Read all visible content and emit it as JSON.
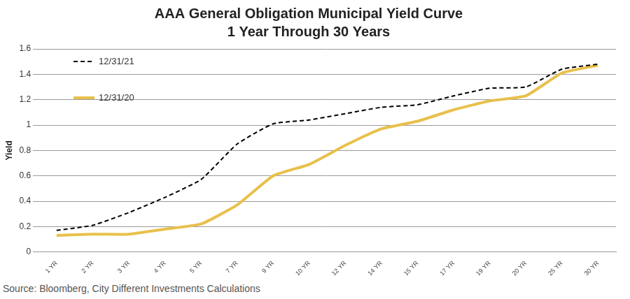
{
  "chart_data": {
    "type": "line",
    "title": "AAA General Obligation Municipal Yield Curve",
    "subtitle": "1 Year Through 30 Years",
    "y_label": "Yield",
    "source": "Source: Bloomberg, City Different Investments Calculations",
    "categories": [
      "1 YR",
      "2 YR",
      "3 YR",
      "4 YR",
      "5 YR",
      "7 YR",
      "9 YR",
      "10 YR",
      "12 YR",
      "14 YR",
      "15 YR",
      "17 YR",
      "19 YR",
      "20 YR",
      "25 YR",
      "30 YR"
    ],
    "series": [
      {
        "name": "12/31/21",
        "color": "#000000",
        "line_style": "dashed",
        "values": [
          0.17,
          0.21,
          0.31,
          0.43,
          0.57,
          0.85,
          1.01,
          1.04,
          1.09,
          1.14,
          1.16,
          1.23,
          1.29,
          1.3,
          1.44,
          1.48
        ]
      },
      {
        "name": "12/31/20",
        "color": "#e8c04b",
        "line_style": "solid",
        "values": [
          0.13,
          0.14,
          0.14,
          0.18,
          0.22,
          0.37,
          0.6,
          0.69,
          0.84,
          0.97,
          1.03,
          1.12,
          1.19,
          1.23,
          1.41,
          1.47
        ]
      }
    ],
    "ylim": [
      0,
      1.6
    ],
    "yticks": [
      0,
      0.2,
      0.4,
      0.6,
      0.8,
      1,
      1.2,
      1.4,
      1.6
    ],
    "grid": true,
    "legend": "upper left"
  }
}
